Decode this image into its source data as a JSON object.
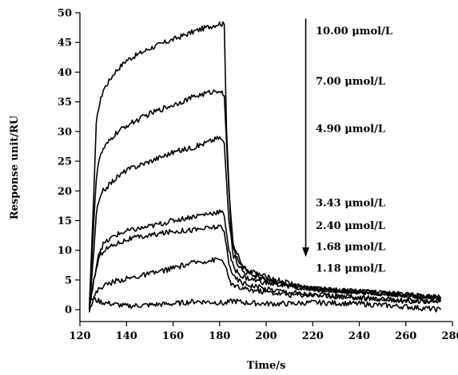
{
  "chart_data": {
    "type": "line",
    "xlabel": "Time/s",
    "ylabel": "Response unit/RU",
    "xlim": [
      120,
      280
    ],
    "ylim": [
      -2,
      50
    ],
    "xticks": [
      120,
      140,
      160,
      180,
      200,
      220,
      240,
      260,
      280
    ],
    "yticks": [
      0,
      5,
      10,
      15,
      20,
      25,
      30,
      35,
      40,
      45,
      50
    ],
    "grid": false,
    "legend": "annotations at top-right with downward arrow",
    "series": [
      {
        "name": "10.00 µmol/L",
        "x": [
          124,
          126,
          127,
          128,
          130,
          135,
          140,
          150,
          160,
          170,
          180,
          182,
          183,
          185,
          190,
          200,
          210,
          220,
          240,
          260,
          275
        ],
        "y": [
          0,
          20,
          31,
          34,
          37,
          40,
          42,
          44,
          45.5,
          47,
          48.2,
          48,
          30,
          12,
          7,
          5,
          4,
          3.5,
          3,
          2.5,
          2
        ]
      },
      {
        "name": "7.00 µmol/L",
        "x": [
          124,
          126,
          127,
          128,
          130,
          135,
          140,
          150,
          160,
          170,
          180,
          182,
          184,
          186,
          190,
          200,
          210,
          220,
          240,
          260,
          275
        ],
        "y": [
          0,
          15,
          22,
          25,
          27,
          29.5,
          31,
          33,
          34.5,
          36,
          37,
          36,
          20,
          10,
          7,
          5.5,
          4.5,
          3.5,
          3,
          2.5,
          2
        ]
      },
      {
        "name": "4.90 µmol/L",
        "x": [
          124,
          126,
          127,
          128,
          130,
          135,
          140,
          150,
          160,
          170,
          180,
          182,
          184,
          186,
          190,
          200,
          210,
          220,
          240,
          260,
          275
        ],
        "y": [
          0,
          10,
          16,
          18,
          20,
          22,
          23.5,
          25,
          26.5,
          27.5,
          29,
          28,
          15,
          9,
          6.5,
          5,
          4,
          3.5,
          3,
          2.5,
          2
        ]
      },
      {
        "name": "3.43 µmol/L",
        "x": [
          124,
          126,
          128,
          130,
          135,
          140,
          150,
          160,
          170,
          180,
          182,
          184,
          186,
          190,
          200,
          210,
          220,
          240,
          260,
          275
        ],
        "y": [
          0,
          5,
          9.5,
          11,
          12.5,
          13.2,
          14,
          15,
          15.8,
          16.5,
          16,
          10,
          7,
          5.5,
          4.5,
          4,
          3.5,
          3,
          2.5,
          2
        ]
      },
      {
        "name": "2.40 µmol/L",
        "x": [
          124,
          126,
          128,
          130,
          135,
          140,
          150,
          160,
          170,
          180,
          182,
          184,
          186,
          190,
          200,
          210,
          220,
          240,
          260,
          275
        ],
        "y": [
          0,
          5,
          8.5,
          10,
          11,
          11.8,
          12.5,
          13.2,
          13.5,
          14,
          13,
          8,
          5.5,
          4.5,
          3.5,
          3,
          2.5,
          2,
          1.5,
          1.5
        ]
      },
      {
        "name": "1.68 µmol/L",
        "x": [
          124,
          126,
          128,
          130,
          135,
          140,
          150,
          160,
          170,
          180,
          182,
          184,
          186,
          190,
          200,
          210,
          220,
          240,
          260,
          275
        ],
        "y": [
          0,
          2,
          3.5,
          4,
          4.8,
          5.2,
          6,
          7,
          8,
          8.5,
          8,
          5,
          4,
          3.5,
          3,
          2.5,
          2.5,
          2,
          1.5,
          1.5
        ]
      },
      {
        "name": "1.18 µmol/L",
        "x": [
          124,
          130,
          140,
          150,
          160,
          170,
          180,
          182,
          186,
          190,
          200,
          210,
          220,
          240,
          260,
          275
        ],
        "y": [
          2,
          1.2,
          0.6,
          0.8,
          1,
          1.4,
          1.2,
          1,
          1.5,
          1.2,
          1,
          1,
          1.2,
          1,
          0.5,
          0
        ]
      }
    ],
    "annotations": [
      {
        "text": "10.00 μmol/L",
        "y": 47
      },
      {
        "text": "7.00 μmol/L",
        "y": 38.5
      },
      {
        "text": "4.90 μmol/L",
        "y": 30.5
      },
      {
        "text": "3.43 μmol/L",
        "y": 18
      },
      {
        "text": "2.40 μmol/L",
        "y": 14.2
      },
      {
        "text": "1.68 μmol/L",
        "y": 10.6
      },
      {
        "text": "1.18 μmol/L",
        "y": 7
      }
    ],
    "arrow": {
      "x": 217,
      "y_start": 49,
      "y_end": 9
    }
  }
}
